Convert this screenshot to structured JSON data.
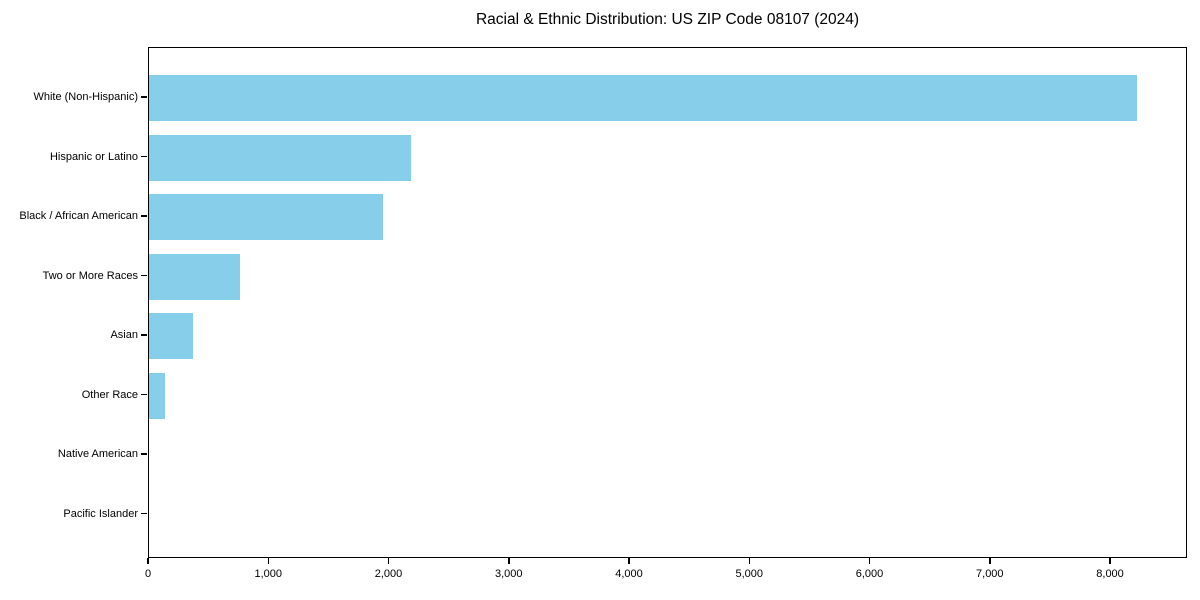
{
  "chart_data": {
    "type": "bar",
    "orientation": "horizontal",
    "title": "Racial & Ethnic Distribution: US ZIP Code 08107 (2024)",
    "categories": [
      "White (Non-Hispanic)",
      "Hispanic or Latino",
      "Black / African American",
      "Two or More Races",
      "Asian",
      "Other Race",
      "Native American",
      "Pacific Islander"
    ],
    "values": [
      8220,
      2180,
      1948,
      755,
      365,
      130,
      0,
      0
    ],
    "xlabel": "",
    "ylabel": "",
    "xlim": [
      0,
      8640
    ],
    "x_ticks": [
      0,
      1000,
      2000,
      3000,
      4000,
      5000,
      6000,
      7000,
      8000
    ],
    "x_tick_labels": [
      "0",
      "1,000",
      "2,000",
      "3,000",
      "4,000",
      "5,000",
      "6,000",
      "7,000",
      "8,000"
    ],
    "grid": false,
    "legend": false,
    "bar_color": "#87CEEB",
    "frame_color": "#000000",
    "text_color": "#000000"
  }
}
